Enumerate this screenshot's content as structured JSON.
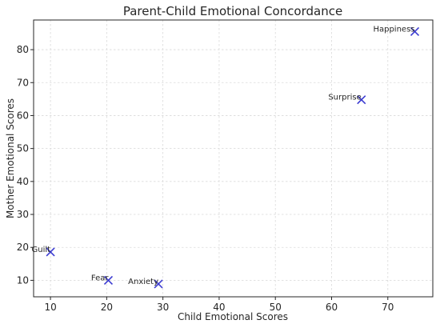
{
  "chart_data": {
    "type": "scatter",
    "title": "Parent-Child Emotional Concordance",
    "xlabel": "Child Emotional Scores",
    "ylabel": "Mother Emotional Scores",
    "xlim": [
      7,
      78
    ],
    "ylim": [
      5,
      89
    ],
    "xticks": [
      10,
      20,
      30,
      40,
      50,
      60,
      70
    ],
    "yticks": [
      10,
      20,
      30,
      40,
      50,
      60,
      70,
      80
    ],
    "grid": true,
    "marker": "x",
    "marker_color": "#3b3bd1",
    "points": [
      {
        "label": "Happiness",
        "x": 74.8,
        "y": 85.5
      },
      {
        "label": "Surprise",
        "x": 65.3,
        "y": 64.8
      },
      {
        "label": "Guilt",
        "x": 10.0,
        "y": 18.6
      },
      {
        "label": "Fear",
        "x": 20.3,
        "y": 10.0
      },
      {
        "label": "Anxiety",
        "x": 29.2,
        "y": 8.9
      }
    ]
  }
}
